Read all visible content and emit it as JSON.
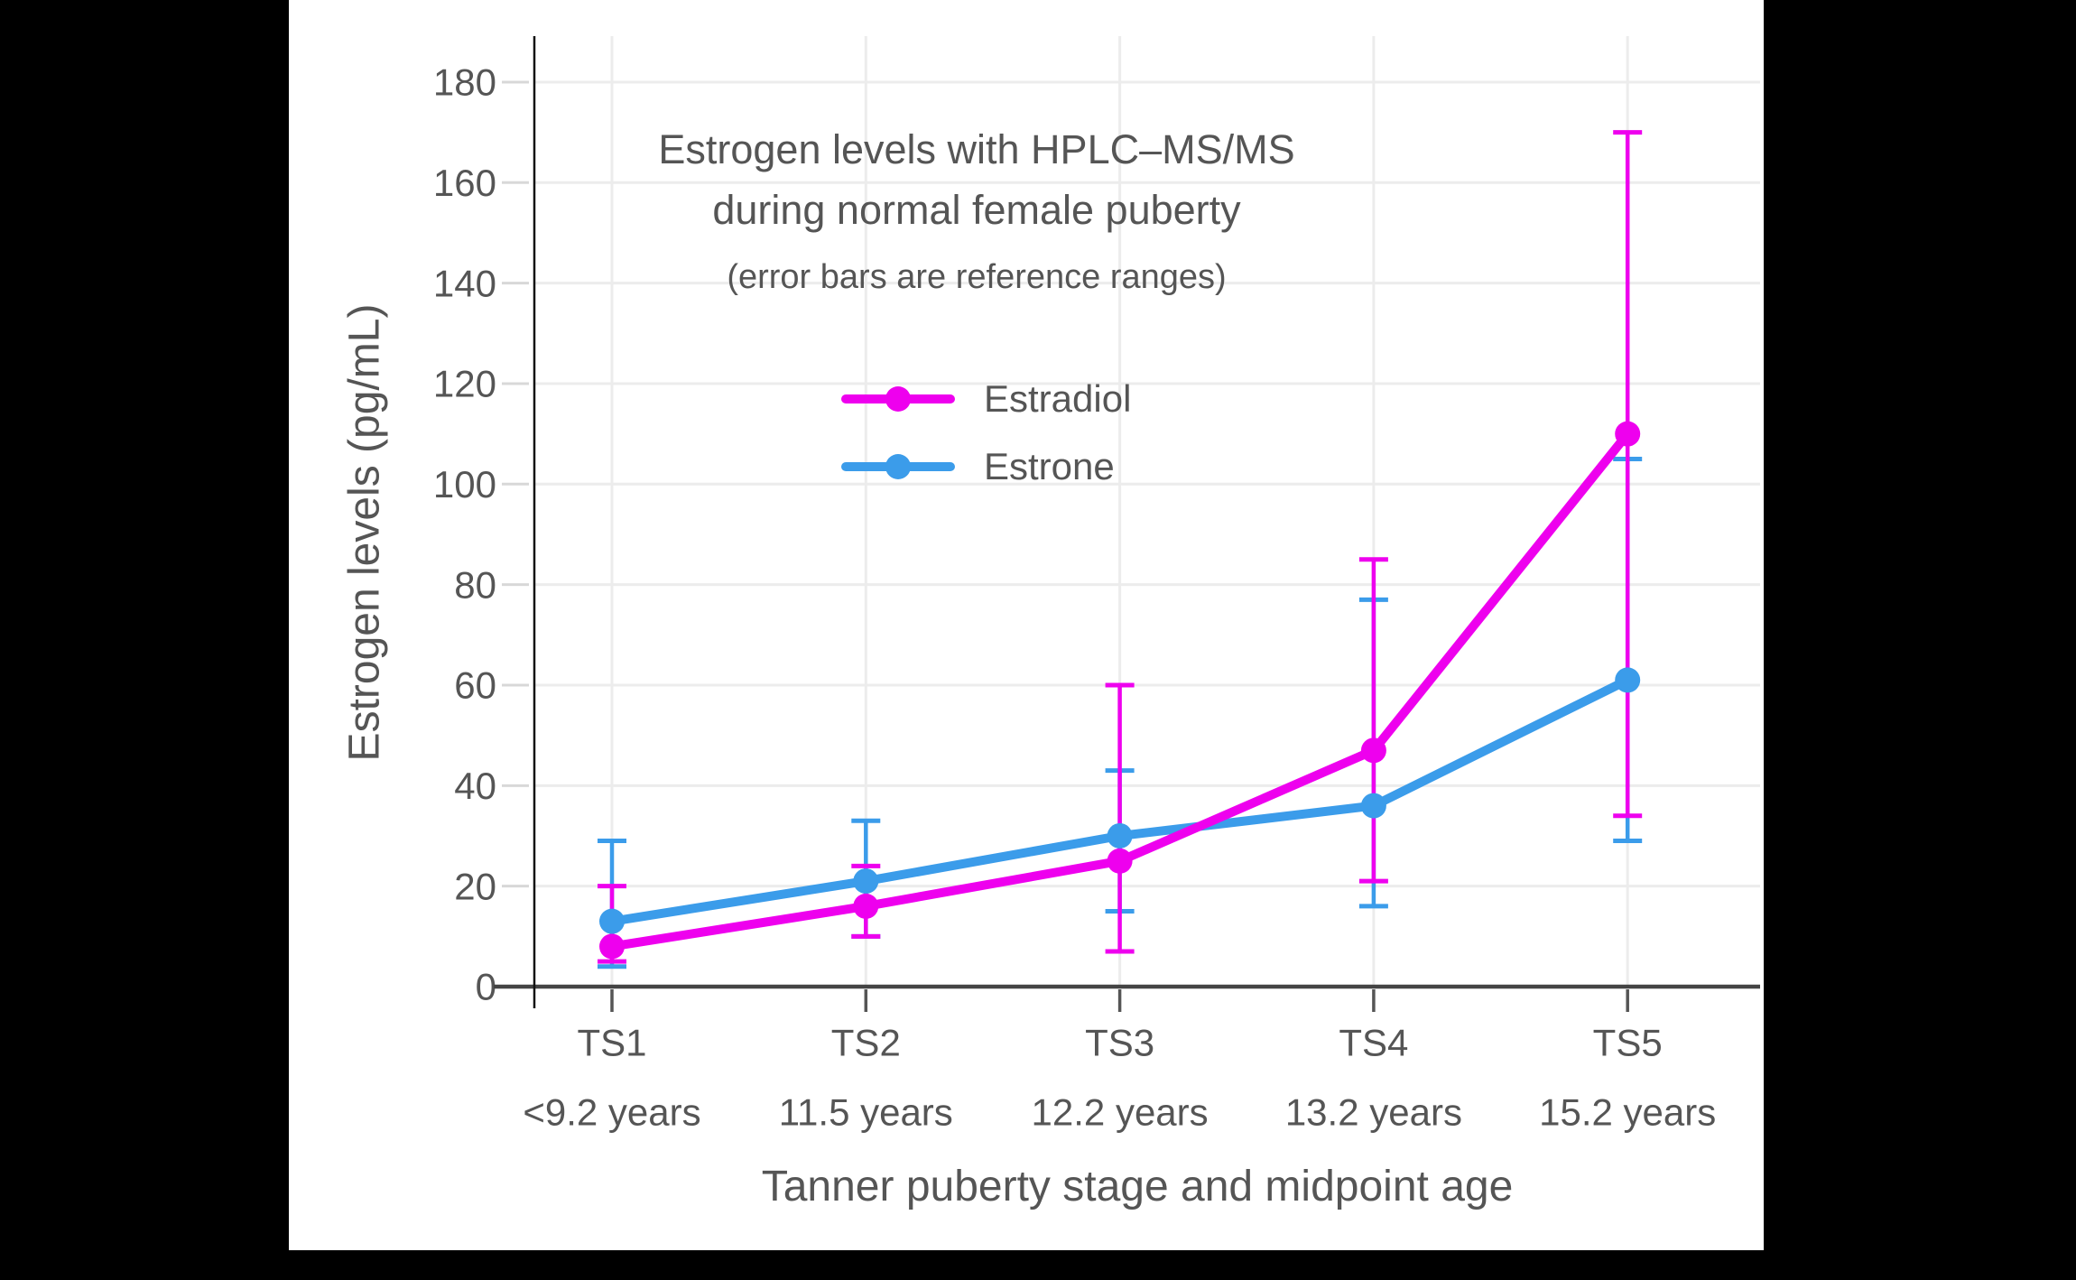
{
  "figure_background": "#ffffff",
  "viewer_background": "#000000",
  "chart_data": {
    "type": "line",
    "title": "Estrogen levels with HPLC–MS/MS",
    "title_line2": "during normal female puberty",
    "subtitle": "(error bars are reference ranges)",
    "xlabel": "Tanner puberty stage and midpoint age",
    "ylabel": "Estrogen levels (pg/mL)",
    "categories": [
      "TS1",
      "TS2",
      "TS3",
      "TS4",
      "TS5"
    ],
    "category_ages": [
      "<9.2 years",
      "11.5 years",
      "12.2 years",
      "13.2 years",
      "15.2 years"
    ],
    "yticks": [
      0,
      20,
      40,
      60,
      80,
      100,
      120,
      140,
      160,
      180
    ],
    "ylim": [
      0,
      189
    ],
    "grid": true,
    "legend_position": "upper-left-of-center",
    "series": [
      {
        "name": "Estradiol",
        "color": "#EE00EE",
        "values": [
          8,
          16,
          25,
          47,
          110
        ],
        "range_low": [
          5,
          10,
          7,
          21,
          34
        ],
        "range_high": [
          20,
          24,
          60,
          85,
          170
        ]
      },
      {
        "name": "Estrone",
        "color": "#3B9CEA",
        "values": [
          13,
          21,
          30,
          36,
          61
        ],
        "range_low": [
          4,
          10,
          15,
          16,
          29
        ],
        "range_high": [
          29,
          33,
          43,
          77,
          105
        ]
      }
    ],
    "text_color": "#555555",
    "grid_color": "#ececec",
    "xaxis_line_color": "#444444",
    "yaxis_line_color": "#111111"
  }
}
